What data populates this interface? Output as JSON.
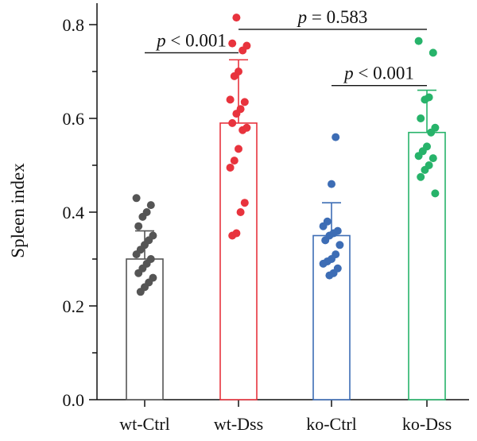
{
  "chart_data": {
    "type": "bar",
    "ylabel": "Spleen index",
    "xlabel": "",
    "ylim": [
      0,
      0.8
    ],
    "yticks": [
      "0.0",
      "0.2",
      "0.4",
      "0.6",
      "0.8"
    ],
    "grid": false,
    "categories": [
      "wt-Ctrl",
      "wt-Dss",
      "ko-Ctrl",
      "ko-Dss"
    ],
    "values": [
      0.3,
      0.59,
      0.35,
      0.57
    ],
    "errors": [
      0.06,
      0.135,
      0.07,
      0.09
    ],
    "colors": [
      "#555555",
      "#e8333d",
      "#3d6db5",
      "#27b36a"
    ],
    "points": [
      [
        0.43,
        0.415,
        0.4,
        0.39,
        0.37,
        0.35,
        0.34,
        0.33,
        0.32,
        0.31,
        0.3,
        0.29,
        0.28,
        0.27,
        0.26,
        0.25,
        0.24,
        0.23
      ],
      [
        0.815,
        0.76,
        0.755,
        0.745,
        0.7,
        0.69,
        0.64,
        0.635,
        0.62,
        0.61,
        0.59,
        0.58,
        0.575,
        0.535,
        0.51,
        0.495,
        0.42,
        0.4,
        0.355,
        0.35
      ],
      [
        0.56,
        0.46,
        0.38,
        0.37,
        0.36,
        0.355,
        0.35,
        0.34,
        0.33,
        0.31,
        0.3,
        0.295,
        0.29,
        0.28,
        0.27,
        0.265
      ],
      [
        0.765,
        0.74,
        0.645,
        0.64,
        0.6,
        0.58,
        0.57,
        0.54,
        0.53,
        0.52,
        0.515,
        0.5,
        0.49,
        0.475,
        0.44
      ]
    ],
    "annotations": [
      {
        "prefix": "p",
        "text": " < 0.001",
        "from": 0,
        "to": 1,
        "y": 0.74
      },
      {
        "prefix": "p",
        "text": " = 0.583",
        "from": 1,
        "to": 3,
        "y": 0.79
      },
      {
        "prefix": "p",
        "text": " < 0.001",
        "from": 2,
        "to": 3,
        "y": 0.67
      }
    ]
  }
}
